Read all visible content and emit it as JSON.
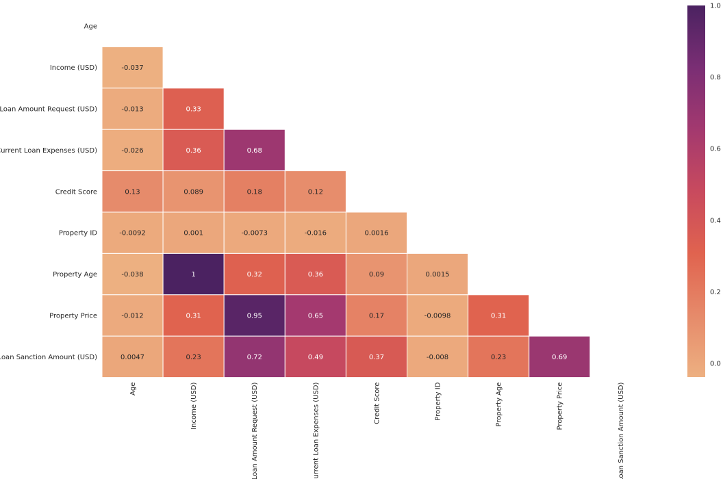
{
  "chart_data": {
    "type": "heatmap",
    "title": "",
    "variables": [
      "Age",
      "Income (USD)",
      "Loan Amount Request (USD)",
      "Current Loan Expenses (USD)",
      "Credit Score",
      "Property ID",
      "Property Age",
      "Property Price",
      "Loan Sanction Amount (USD)"
    ],
    "mask": "upper-triangle-including-diagonal",
    "values": [
      [
        1,
        -0.037,
        -0.013,
        -0.026,
        0.13,
        -0.0092,
        -0.038,
        -0.012,
        0.0047
      ],
      [
        -0.037,
        1,
        0.33,
        0.36,
        0.089,
        0.001,
        1,
        0.31,
        0.23
      ],
      [
        -0.013,
        0.33,
        1,
        0.68,
        0.18,
        -0.0073,
        0.32,
        0.95,
        0.72
      ],
      [
        -0.026,
        0.36,
        0.68,
        1,
        0.12,
        -0.016,
        0.36,
        0.65,
        0.49
      ],
      [
        0.13,
        0.089,
        0.18,
        0.12,
        1,
        0.0016,
        0.09,
        0.17,
        0.37
      ],
      [
        -0.0092,
        0.001,
        -0.0073,
        -0.016,
        0.0016,
        1,
        0.0015,
        -0.0098,
        -0.008
      ],
      [
        -0.038,
        1,
        0.32,
        0.36,
        0.09,
        0.0015,
        1,
        0.31,
        0.23
      ],
      [
        -0.012,
        0.31,
        0.95,
        0.65,
        0.17,
        -0.0098,
        0.31,
        1,
        0.69
      ],
      [
        0.0047,
        0.23,
        0.72,
        0.49,
        0.37,
        -0.008,
        0.23,
        0.69,
        1
      ]
    ],
    "labels": [
      [
        "",
        "",
        "",
        "",
        "",
        "",
        "",
        "",
        ""
      ],
      [
        "-0.037",
        "",
        "",
        "",
        "",
        "",
        "",
        "",
        ""
      ],
      [
        "-0.013",
        "0.33",
        "",
        "",
        "",
        "",
        "",
        "",
        ""
      ],
      [
        "-0.026",
        "0.36",
        "0.68",
        "",
        "",
        "",
        "",
        "",
        ""
      ],
      [
        "0.13",
        "0.089",
        "0.18",
        "0.12",
        "",
        "",
        "",
        "",
        ""
      ],
      [
        "-0.0092",
        "0.001",
        "-0.0073",
        "-0.016",
        "0.0016",
        "",
        "",
        "",
        ""
      ],
      [
        "-0.038",
        "1",
        "0.32",
        "0.36",
        "0.09",
        "0.0015",
        "",
        "",
        ""
      ],
      [
        "-0.012",
        "0.31",
        "0.95",
        "0.65",
        "0.17",
        "-0.0098",
        "0.31",
        "",
        ""
      ],
      [
        "0.0047",
        "0.23",
        "0.72",
        "0.49",
        "0.37",
        "-0.008",
        "0.23",
        "0.69",
        ""
      ]
    ],
    "colorbar": {
      "vmin": -0.038,
      "vmax": 1.0,
      "ticks": [
        0.0,
        0.2,
        0.4,
        0.6,
        0.8,
        1.0
      ],
      "tick_labels": [
        "0.0",
        "0.2",
        "0.4",
        "0.6",
        "0.8",
        "1.0"
      ],
      "colormap": "flare",
      "colormap_stops": [
        "#edb081",
        "#e68a6a",
        "#e0634f",
        "#c84a5e",
        "#a3396f",
        "#7a2e74",
        "#4b2261"
      ]
    },
    "annotation_colors": {
      "dark_bg_text": "#ffffff",
      "light_bg_text": "#262626"
    },
    "grid_line_color": "#ffffff"
  }
}
